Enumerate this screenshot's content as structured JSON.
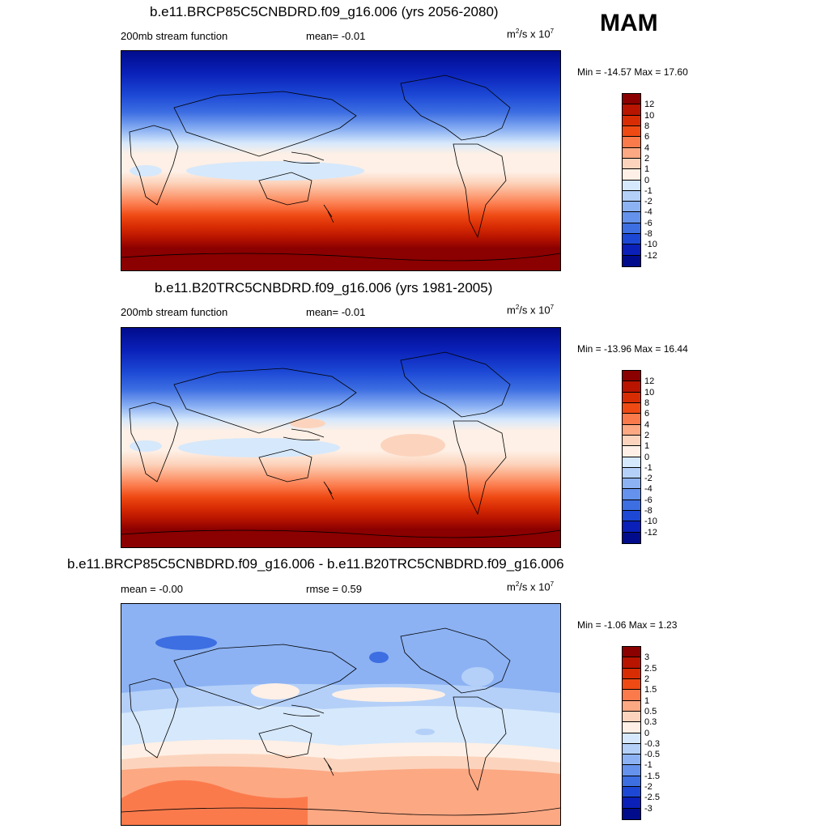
{
  "season": "MAM",
  "panels": [
    {
      "title": "b.e11.BRCP85C5CNBDRD.f09_g16.006 (yrs 2056-2080)",
      "left_label": "200mb stream function",
      "center_label": "mean=  -0.01",
      "units_base": "m",
      "units_sup1": "2",
      "units_mid": "/s x 10",
      "units_sup2": "7",
      "minmax": "Min = -14.57 Max =  17.60",
      "levels": [
        "12",
        "10",
        "8",
        "6",
        "4",
        "2",
        "1",
        "0",
        "-1",
        "-2",
        "-4",
        "-6",
        "-8",
        "-10",
        "-12"
      ],
      "colors": [
        "#8b0000",
        "#b81400",
        "#d82c04",
        "#ef4a14",
        "#fb7a4c",
        "#fca883",
        "#fcd4bd",
        "#fef0e6",
        "#d6e8fb",
        "#b4d0f8",
        "#8cb2f3",
        "#6492ec",
        "#3d6ee2",
        "#1c48d5",
        "#0a20b8",
        "#010c8c"
      ]
    },
    {
      "title": "b.e11.B20TRC5CNBDRD.f09_g16.006 (yrs 1981-2005)",
      "left_label": "200mb stream function",
      "center_label": "mean=  -0.01",
      "units_base": "m",
      "units_sup1": "2",
      "units_mid": "/s x 10",
      "units_sup2": "7",
      "minmax": "Min = -13.96 Max =  16.44",
      "levels": [
        "12",
        "10",
        "8",
        "6",
        "4",
        "2",
        "1",
        "0",
        "-1",
        "-2",
        "-4",
        "-6",
        "-8",
        "-10",
        "-12"
      ],
      "colors": [
        "#8b0000",
        "#b81400",
        "#d82c04",
        "#ef4a14",
        "#fb7a4c",
        "#fca883",
        "#fcd4bd",
        "#fef0e6",
        "#d6e8fb",
        "#b4d0f8",
        "#8cb2f3",
        "#6492ec",
        "#3d6ee2",
        "#1c48d5",
        "#0a20b8",
        "#010c8c"
      ]
    },
    {
      "title": "b.e11.BRCP85C5CNBDRD.f09_g16.006 - b.e11.B20TRC5CNBDRD.f09_g16.006",
      "left_label": "mean =  -0.00",
      "center_label": "rmse =   0.59",
      "units_base": "m",
      "units_sup1": "2",
      "units_mid": "/s x 10",
      "units_sup2": "7",
      "minmax": "Min =  -1.06 Max =   1.23",
      "levels": [
        "3",
        "2.5",
        "2",
        "1.5",
        "1",
        "0.5",
        "0.3",
        "0",
        "-0.3",
        "-0.5",
        "-1",
        "-1.5",
        "-2",
        "-2.5",
        "-3"
      ],
      "colors": [
        "#8b0000",
        "#b81400",
        "#d82c04",
        "#ef4a14",
        "#fb7a4c",
        "#fca883",
        "#fcd4bd",
        "#fef0e6",
        "#d6e8fb",
        "#b4d0f8",
        "#8cb2f3",
        "#6492ec",
        "#3d6ee2",
        "#1c48d5",
        "#0a20b8",
        "#010c8c"
      ]
    }
  ]
}
